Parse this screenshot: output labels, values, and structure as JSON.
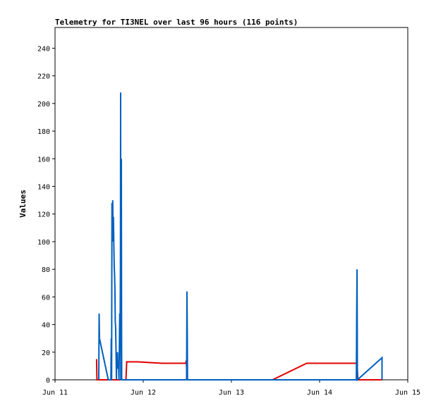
{
  "chart_data": {
    "type": "line",
    "title": "Telemetry for TI3NEL over last 96 hours (116 points)",
    "xlabel": "",
    "ylabel": "Values",
    "x_range_hours": [
      0,
      96
    ],
    "ylim": [
      0,
      255
    ],
    "x_ticks": [
      {
        "label": "Jun 11",
        "hour": 0
      },
      {
        "label": "Jun 12",
        "hour": 24
      },
      {
        "label": "Jun 13",
        "hour": 48
      },
      {
        "label": "Jun 14",
        "hour": 72
      },
      {
        "label": "Jun 15",
        "hour": 96
      }
    ],
    "y_ticks": [
      0,
      20,
      40,
      60,
      80,
      100,
      120,
      140,
      160,
      180,
      200,
      220,
      240
    ],
    "grid": false,
    "series": [
      {
        "color": "#e00000",
        "points": [
          [
            11.3,
            15
          ],
          [
            11.4,
            0
          ],
          [
            17.6,
            0
          ],
          [
            19.3,
            0
          ],
          [
            19.5,
            13
          ],
          [
            22.5,
            13
          ],
          [
            29.0,
            12
          ],
          [
            35.6,
            12
          ],
          [
            35.7,
            14
          ],
          [
            36.0,
            0
          ],
          [
            59.2,
            0
          ],
          [
            68.5,
            12
          ],
          [
            82.2,
            12
          ],
          [
            82.4,
            0
          ],
          [
            89.0,
            0
          ]
        ]
      },
      {
        "color": "#0060c0",
        "points": [
          [
            11.9,
            0
          ],
          [
            12.0,
            48
          ],
          [
            12.1,
            30
          ],
          [
            14.5,
            0
          ],
          [
            15.2,
            0
          ],
          [
            15.3,
            30
          ],
          [
            15.4,
            0
          ],
          [
            15.5,
            128
          ],
          [
            15.6,
            110
          ],
          [
            15.7,
            130
          ],
          [
            15.8,
            100
          ],
          [
            15.9,
            118
          ],
          [
            16.0,
            100
          ],
          [
            16.1,
            82
          ],
          [
            16.2,
            76
          ],
          [
            16.3,
            66
          ],
          [
            16.4,
            42
          ],
          [
            16.5,
            38
          ],
          [
            16.6,
            20
          ],
          [
            16.7,
            0
          ],
          [
            16.8,
            16
          ],
          [
            16.9,
            10
          ],
          [
            17.0,
            20
          ],
          [
            17.1,
            8
          ],
          [
            17.3,
            12
          ],
          [
            17.4,
            0
          ],
          [
            17.5,
            20
          ],
          [
            17.6,
            48
          ],
          [
            17.7,
            32
          ],
          [
            17.8,
            80
          ],
          [
            17.85,
            208
          ],
          [
            17.9,
            0
          ],
          [
            18.0,
            0
          ],
          [
            18.05,
            160
          ],
          [
            18.1,
            48
          ],
          [
            18.15,
            0
          ],
          [
            19.0,
            0
          ],
          [
            35.8,
            0
          ],
          [
            35.9,
            64
          ],
          [
            36.0,
            30
          ],
          [
            36.05,
            0
          ],
          [
            82.0,
            0
          ],
          [
            82.1,
            48
          ],
          [
            82.2,
            80
          ],
          [
            82.3,
            0
          ],
          [
            89.0,
            16
          ],
          [
            89.0,
            0
          ]
        ]
      }
    ]
  }
}
